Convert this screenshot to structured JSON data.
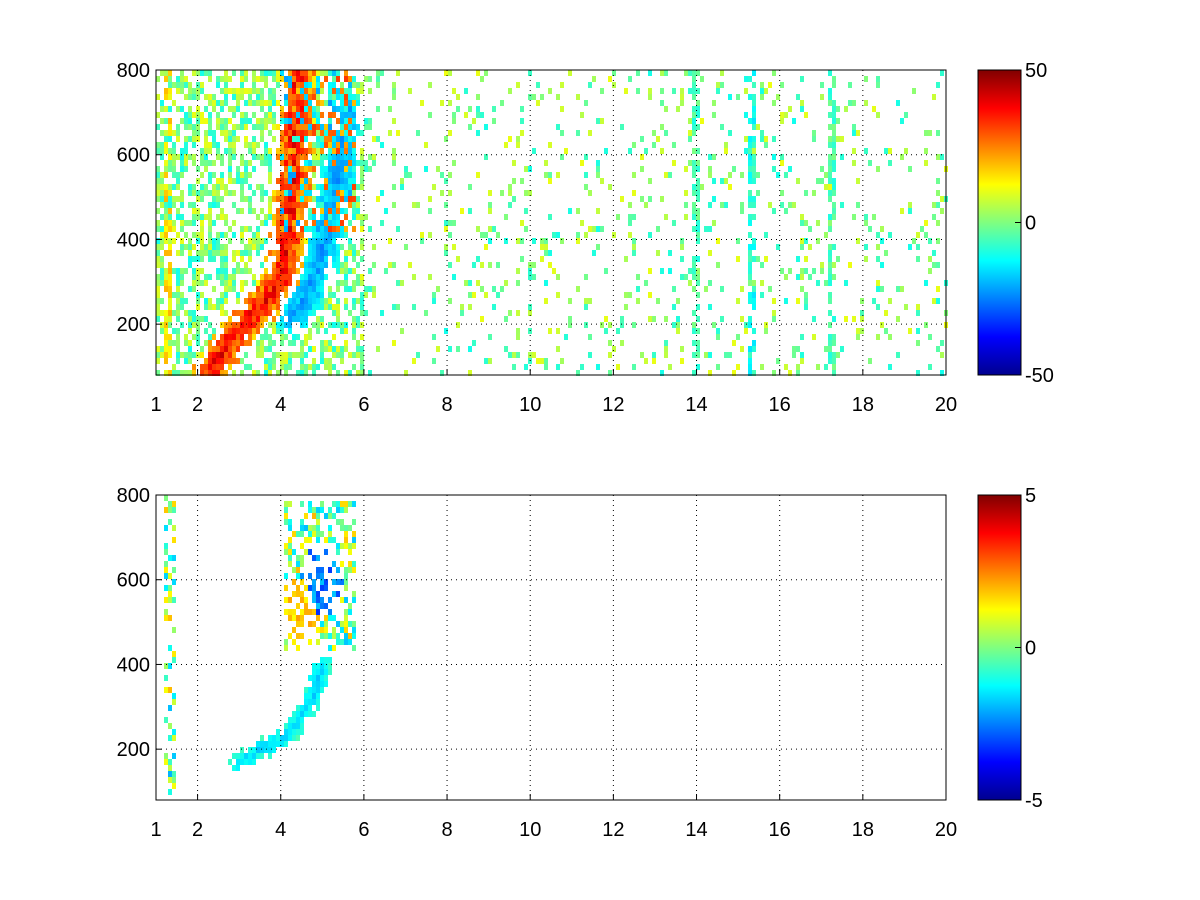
{
  "chart_data": [
    {
      "type": "heatmap",
      "panel": "top",
      "xlim": [
        1,
        20
      ],
      "ylim": [
        80,
        800
      ],
      "x_ticks": [
        1,
        2,
        4,
        6,
        8,
        10,
        12,
        14,
        16,
        18,
        20
      ],
      "x_tick_labels": [
        "1",
        "2",
        "4",
        "6",
        "8",
        "10",
        "12",
        "14",
        "16",
        "18",
        "20"
      ],
      "y_ticks": [
        200,
        400,
        600,
        800
      ],
      "y_tick_labels": [
        "200",
        "400",
        "600",
        "800"
      ],
      "grid": true,
      "colormap": "jet",
      "colorbar": {
        "min": -50,
        "max": 50,
        "ticks": [
          50,
          0,
          -50
        ],
        "tick_labels": [
          "50",
          "0",
          "-50"
        ]
      },
      "title": "",
      "xlabel": "",
      "ylabel": "",
      "features": [
        {
          "desc": "main positive band",
          "points": [
            [
              2.3,
              90
            ],
            [
              3.0,
              190
            ],
            [
              3.5,
              240
            ],
            [
              4.0,
              300
            ],
            [
              4.2,
              420
            ],
            [
              4.3,
              560
            ],
            [
              4.4,
              780
            ]
          ],
          "value": 35
        },
        {
          "desc": "negative band",
          "points": [
            [
              4.3,
              220
            ],
            [
              4.6,
              260
            ],
            [
              4.9,
              340
            ],
            [
              5.2,
              460
            ],
            [
              5.4,
              560
            ],
            [
              5.6,
              700
            ]
          ],
          "value": -20
        },
        {
          "desc": "vertical streak",
          "x": 1.3,
          "value": 15
        },
        {
          "desc": "vertical streak",
          "x": 15.3,
          "value": -10
        },
        {
          "desc": "vertical streak",
          "x": 17.3,
          "value": -5
        },
        {
          "desc": "vertical streak",
          "x": 14.0,
          "value": -5
        }
      ]
    },
    {
      "type": "heatmap",
      "panel": "bottom",
      "xlim": [
        1,
        20
      ],
      "ylim": [
        80,
        800
      ],
      "x_ticks": [
        1,
        2,
        4,
        6,
        8,
        10,
        12,
        14,
        16,
        18,
        20
      ],
      "x_tick_labels": [
        "1",
        "2",
        "4",
        "6",
        "8",
        "10",
        "12",
        "14",
        "16",
        "18",
        "20"
      ],
      "y_ticks": [
        200,
        400,
        600,
        800
      ],
      "y_tick_labels": [
        "200",
        "400",
        "600",
        "800"
      ],
      "grid": true,
      "colormap": "jet",
      "colorbar": {
        "min": -5,
        "max": 5,
        "ticks": [
          5,
          0,
          -5
        ],
        "tick_labels": [
          "5",
          "0",
          "-5"
        ]
      },
      "title": "",
      "xlabel": "",
      "ylabel": "",
      "features": [
        {
          "desc": "low band",
          "points": [
            [
              3.0,
              170
            ],
            [
              3.5,
              200
            ],
            [
              4.0,
              220
            ],
            [
              4.4,
              260
            ],
            [
              4.8,
              330
            ],
            [
              5.0,
              400
            ]
          ],
          "value": -1.5
        },
        {
          "desc": "upper cluster",
          "center": [
            5.0,
            600
          ],
          "value": -3
        },
        {
          "desc": "upper cluster",
          "center": [
            4.5,
            520
          ],
          "value": 2
        }
      ]
    }
  ]
}
